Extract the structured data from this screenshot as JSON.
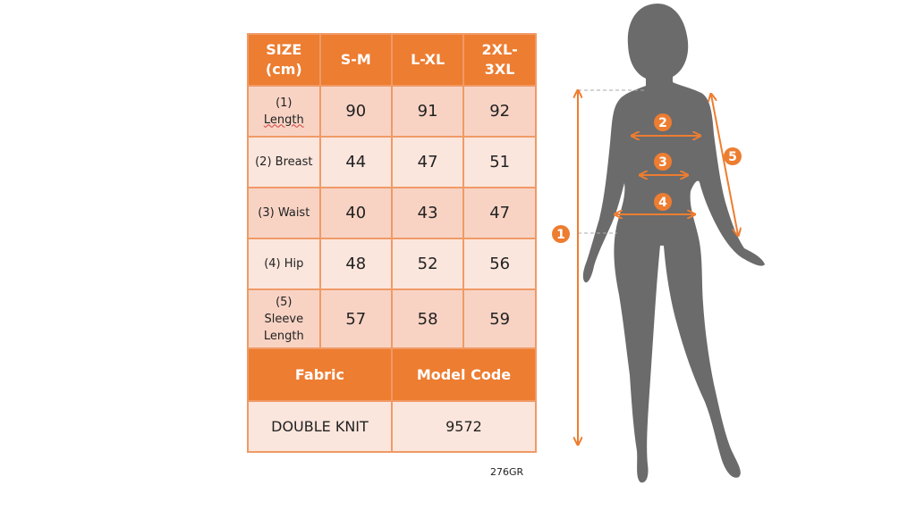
{
  "table": {
    "header": [
      "SIZE (cm)",
      "S-M",
      "L-XL",
      "2XL-3XL"
    ],
    "header_lines": [
      [
        "SIZE",
        "(cm)"
      ],
      [
        "S-M"
      ],
      [
        "L-XL"
      ],
      [
        "2XL-",
        "3XL"
      ]
    ],
    "rows": [
      {
        "label_lines": [
          "(1)",
          "Length"
        ],
        "values": [
          "90",
          "91",
          "92"
        ]
      },
      {
        "label_lines": [
          "(2) Breast"
        ],
        "values": [
          "44",
          "47",
          "51"
        ]
      },
      {
        "label_lines": [
          "(3) Waist"
        ],
        "values": [
          "40",
          "43",
          "47"
        ]
      },
      {
        "label_lines": [
          "(4) Hip"
        ],
        "values": [
          "48",
          "52",
          "56"
        ]
      },
      {
        "label_lines": [
          "(5)",
          "Sleeve",
          "Length"
        ],
        "values": [
          "57",
          "58",
          "59"
        ]
      }
    ],
    "fabric_label": "Fabric",
    "model_code_label": "Model Code",
    "fabric_value": "DOUBLE KNIT",
    "model_code_value": "9572"
  },
  "code_note": "276GR",
  "figure": {
    "markers": [
      "1",
      "2",
      "3",
      "4",
      "5"
    ],
    "accent": "#ed7d31",
    "silhouette": "#6b6b6b"
  }
}
